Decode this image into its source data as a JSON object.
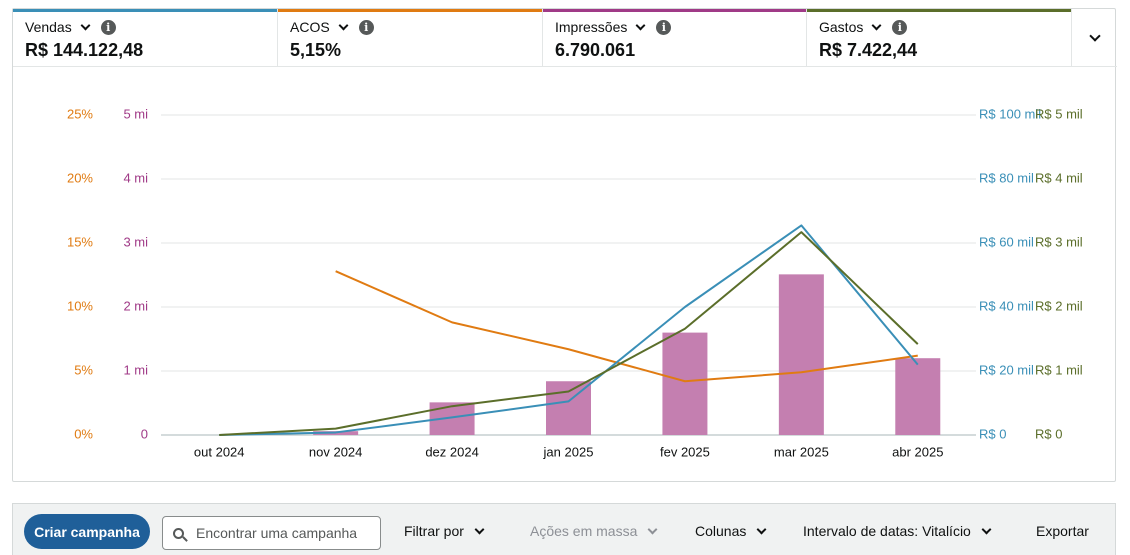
{
  "metrics": [
    {
      "label": "Vendas",
      "value": "R$ 144.122,48",
      "color": "#3a8fb7"
    },
    {
      "label": "ACOS",
      "value": "5,15%",
      "color": "#e07b12"
    },
    {
      "label": "Impressões",
      "value": "6.790.061",
      "color": "#a03a87"
    },
    {
      "label": "Gastos",
      "value": "R$ 7.422,44",
      "color": "#5b6e2a"
    }
  ],
  "info_glyph": "i",
  "chart_data": {
    "type": "bar+line",
    "categories": [
      "out 2024",
      "nov 2024",
      "dez 2024",
      "jan 2025",
      "fev 2025",
      "mar 2025",
      "abr 2025"
    ],
    "axes": {
      "acos": {
        "side": "left-outer",
        "color": "#e07b12",
        "min": 0,
        "max": 25,
        "ticks": [
          "0%",
          "5%",
          "10%",
          "15%",
          "20%",
          "25%"
        ]
      },
      "impressions": {
        "side": "left-inner",
        "color": "#a03a87",
        "min": 0,
        "max": 5000000,
        "ticks": [
          "0",
          "1 mi",
          "2 mi",
          "3 mi",
          "4 mi",
          "5 mi"
        ]
      },
      "sales": {
        "side": "right-inner",
        "color": "#3a8fb7",
        "min": 0,
        "max": 100000,
        "ticks": [
          "R$ 0",
          "R$ 20 mil",
          "R$ 40 mil",
          "R$ 60 mil",
          "R$ 80 mil",
          "R$ 100 mil"
        ]
      },
      "spend": {
        "side": "right-outer",
        "color": "#5b6e2a",
        "min": 0,
        "max": 5000,
        "ticks": [
          "R$ 0",
          "R$ 1 mil",
          "R$ 2 mil",
          "R$ 3 mil",
          "R$ 4 mil",
          "R$ 5 mil"
        ]
      }
    },
    "series": [
      {
        "name": "Impressões",
        "type": "bar",
        "axis": "impressions",
        "color": "#c47fb0",
        "values": [
          0,
          60000,
          510000,
          840000,
          1600000,
          2510000,
          1200000
        ]
      },
      {
        "name": "ACOS",
        "type": "line",
        "axis": "acos",
        "color": "#e07b12",
        "values": [
          null,
          12.8,
          8.8,
          6.7,
          4.2,
          4.9,
          6.2
        ]
      },
      {
        "name": "Vendas",
        "type": "line",
        "axis": "sales",
        "color": "#3a8fb7",
        "values": [
          0,
          800,
          5500,
          10500,
          40000,
          65500,
          22000
        ]
      },
      {
        "name": "Gastos",
        "type": "line",
        "axis": "spend",
        "color": "#5b6e2a",
        "values": [
          0,
          100,
          450,
          680,
          1660,
          3170,
          1420
        ]
      }
    ],
    "grid": true
  },
  "toolbar": {
    "create_label": "Criar campanha",
    "search_placeholder": "Encontrar uma campanha",
    "filter_label": "Filtrar por",
    "bulk_label": "Ações em massa",
    "columns_label": "Colunas",
    "date_range_label": "Intervalo de datas: Vitalício",
    "export_label": "Exportar"
  }
}
